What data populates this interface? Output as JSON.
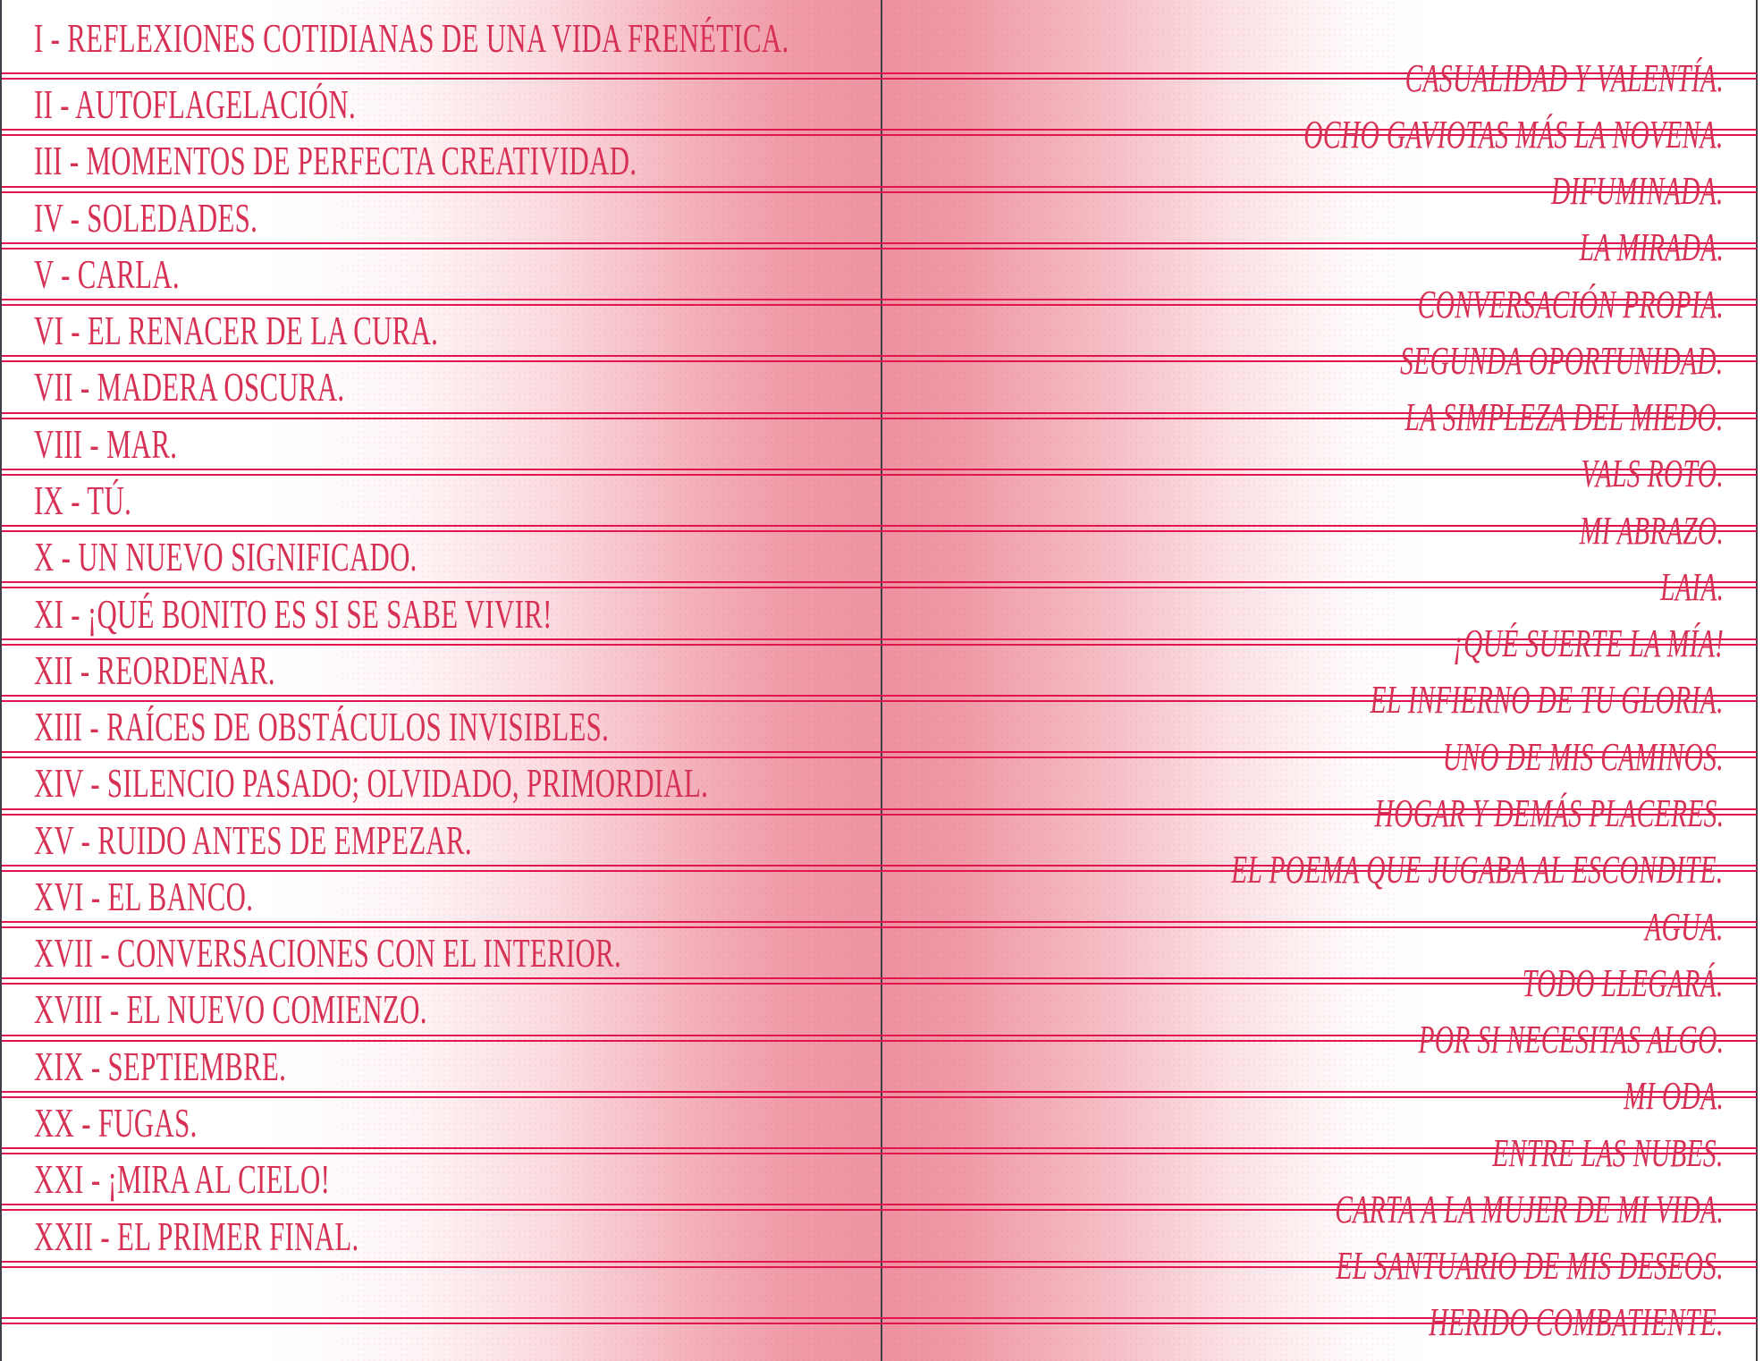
{
  "document_type": "book-table-of-contents-spread",
  "colors": {
    "accent_text": "#d63055",
    "rule_line": "#e2164e",
    "spine_line": "#3f3f47",
    "gutter_pink": "#ee95a2",
    "paper": "#ffffff"
  },
  "toc": {
    "left": [
      "I - REFLEXIONES COTIDIANAS DE UNA VIDA FRENÉTICA.",
      "II - AUTOFLAGELACIÓN.",
      "III - MOMENTOS DE PERFECTA CREATIVIDAD.",
      "IV - SOLEDADES.",
      "V - CARLA.",
      "VI - EL RENACER DE LA CURA.",
      "VII - MADERA OSCURA.",
      "VIII - MAR.",
      "IX - TÚ.",
      "X - UN NUEVO SIGNIFICADO.",
      "XI - ¡QUÉ BONITO ES SI SE SABE VIVIR!",
      "XII - REORDENAR.",
      "XIII - RAÍCES DE OBSTÁCULOS INVISIBLES.",
      "XIV - SILENCIO PASADO; OLVIDADO, PRIMORDIAL.",
      "XV - RUIDO ANTES DE EMPEZAR.",
      "XVI - EL BANCO.",
      "XVII - CONVERSACIONES CON EL INTERIOR.",
      "XVIII - EL NUEVO COMIENZO.",
      "XIX - SEPTIEMBRE.",
      "XX - FUGAS.",
      "XXI - ¡MIRA AL CIELO!",
      "XXII - EL PRIMER FINAL."
    ],
    "right": [
      "CASUALIDAD Y VALENTÍA.",
      "OCHO GAVIOTAS MÁS LA NOVENA.",
      "DIFUMINADA.",
      "LA MIRADA.",
      "CONVERSACIÓN PROPIA.",
      "SEGUNDA OPORTUNIDAD.",
      "LA SIMPLEZA DEL MIEDO.",
      "VALS ROTO.",
      "MI ABRAZO.",
      "LAIA.",
      "¡QUÉ SUERTE LA MÍA!",
      "EL INFIERNO DE TU GLORIA.",
      "UNO DE MIS CAMINOS.",
      "HOGAR Y DEMÁS PLACERES.",
      "EL POEMA QUE JUGABA AL ESCONDITE.",
      "AGUA.",
      "TODO LLEGARÁ.",
      "POR SI NECESITAS ALGO.",
      "MI ODA.",
      "ENTRE LAS NUBES.",
      "CARTA A LA MUJER DE MI VIDA.",
      "EL SANTUARIO DE MIS DESEOS.",
      "HERIDO COMBATIENTE."
    ]
  }
}
